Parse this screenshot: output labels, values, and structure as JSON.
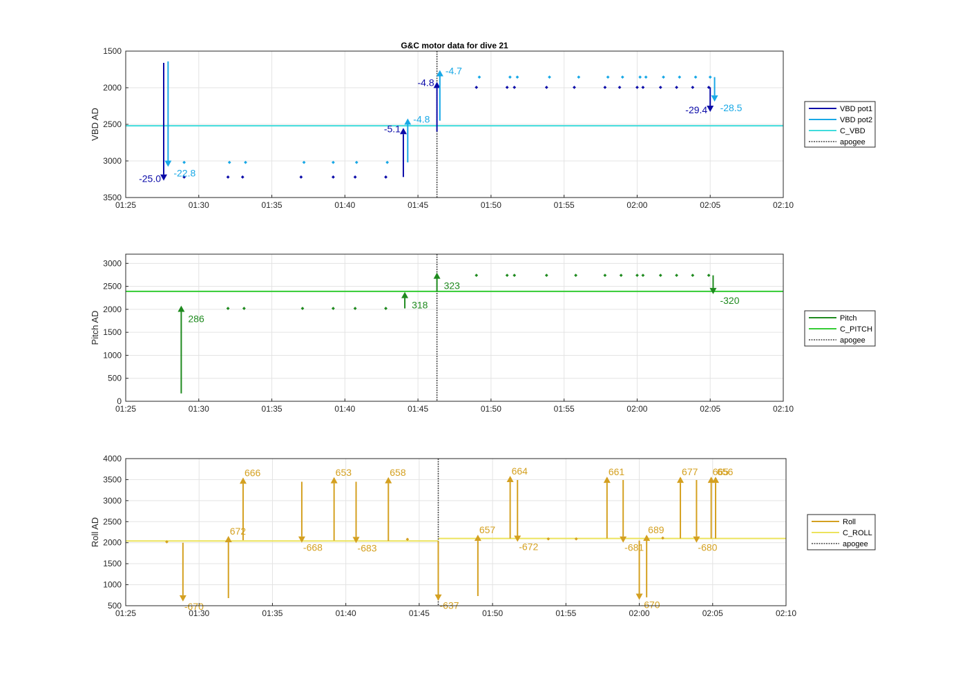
{
  "title": "G&C motor data for dive 21",
  "chart_data": [
    {
      "type": "scatter",
      "ylabel": "VBD AD",
      "y_reversed": true,
      "ylim": [
        1500,
        3500
      ],
      "yticks": [
        "1500",
        "2000",
        "2500",
        "3000",
        "3500"
      ],
      "xlim": [
        "01:25",
        "02:10"
      ],
      "xticks": [
        "01:25",
        "01:30",
        "01:35",
        "01:40",
        "01:45",
        "01:50",
        "01:55",
        "02:00",
        "02:05",
        "02:10"
      ],
      "grid": true,
      "legend_position": "right",
      "colors": {
        "pot1": "#0a0aa8",
        "pot2": "#18a8e6",
        "c_vbd": "#3fdcdc",
        "apogee": "#444444"
      },
      "series": [
        {
          "name": "VBD pot1",
          "color": "#0a0aa8"
        },
        {
          "name": "VBD pot2",
          "color": "#18a8e6"
        },
        {
          "name": "C_VBD",
          "color": "#3fdcdc",
          "hline": 2520
        },
        {
          "name": "apogee",
          "color": "#444444",
          "vline": "01:46.3"
        }
      ],
      "pot1_points": [
        [
          "01:29.0",
          3220
        ],
        [
          "01:32.0",
          3220
        ],
        [
          "01:33.0",
          3220
        ],
        [
          "01:37.0",
          3220
        ],
        [
          "01:39.2",
          3220
        ],
        [
          "01:40.7",
          3220
        ],
        [
          "01:42.8",
          3220
        ],
        [
          "01:49.0",
          1995
        ],
        [
          "01:51.1",
          1995
        ],
        [
          "01:51.6",
          1995
        ],
        [
          "01:53.8",
          1995
        ],
        [
          "01:55.7",
          1995
        ],
        [
          "01:57.8",
          1995
        ],
        [
          "01:58.8",
          1995
        ],
        [
          "02:00.0",
          1995
        ],
        [
          "02:00.4",
          1995
        ],
        [
          "02:01.6",
          1995
        ],
        [
          "02:02.7",
          1995
        ],
        [
          "02:03.8",
          1995
        ],
        [
          "02:04.9",
          1995
        ]
      ],
      "pot2_points": [
        [
          "01:29.0",
          3020
        ],
        [
          "01:32.1",
          3020
        ],
        [
          "01:33.2",
          3020
        ],
        [
          "01:37.2",
          3020
        ],
        [
          "01:39.2",
          3020
        ],
        [
          "01:40.8",
          3020
        ],
        [
          "01:42.9",
          3020
        ],
        [
          "01:49.2",
          1855
        ],
        [
          "01:51.3",
          1855
        ],
        [
          "01:51.8",
          1855
        ],
        [
          "01:54.0",
          1855
        ],
        [
          "01:56.0",
          1855
        ],
        [
          "01:58.0",
          1855
        ],
        [
          "01:59.0",
          1855
        ],
        [
          "02:00.2",
          1855
        ],
        [
          "02:00.6",
          1855
        ],
        [
          "02:01.8",
          1855
        ],
        [
          "02:02.9",
          1855
        ],
        [
          "02:04.0",
          1855
        ],
        [
          "02:05.0",
          1855
        ]
      ],
      "moves": [
        {
          "series": "pot1",
          "x": "01:27.6",
          "from": 1660,
          "to": 3270,
          "label": "-25.0",
          "label_side": "left"
        },
        {
          "series": "pot2",
          "x": "01:27.9",
          "from": 1640,
          "to": 3080,
          "label": "-22.8",
          "label_side": "right"
        },
        {
          "series": "pot1",
          "x": "01:44.0",
          "from": 3220,
          "to": 2550,
          "label": "-5.1",
          "label_side": "left"
        },
        {
          "series": "pot2",
          "x": "01:44.3",
          "from": 3020,
          "to": 2420,
          "label": "-4.8",
          "label_side": "right"
        },
        {
          "series": "pot1",
          "x": "01:46.3",
          "from": 2600,
          "to": 1920,
          "label": "-4.8",
          "label_side": "left"
        },
        {
          "series": "pot2",
          "x": "01:46.5",
          "from": 2450,
          "to": 1760,
          "label": "-4.7",
          "label_side": "right"
        },
        {
          "series": "pot1",
          "x": "02:05.0",
          "from": 1995,
          "to": 2330,
          "label": "-29.4",
          "label_side": "left"
        },
        {
          "series": "pot2",
          "x": "02:05.3",
          "from": 1855,
          "to": 2190,
          "label": "-28.5",
          "label_side": "right"
        }
      ]
    },
    {
      "type": "scatter",
      "ylabel": "Pitch AD",
      "ylim": [
        0,
        3200
      ],
      "yticks": [
        "0",
        "500",
        "1000",
        "1500",
        "2000",
        "2500",
        "3000"
      ],
      "xlim": [
        "01:25",
        "02:10"
      ],
      "xticks": [
        "01:25",
        "01:30",
        "01:35",
        "01:40",
        "01:45",
        "01:50",
        "01:55",
        "02:00",
        "02:05",
        "02:10"
      ],
      "grid": true,
      "legend_position": "right",
      "colors": {
        "pitch": "#1e8a1e",
        "c_pitch": "#33cc33",
        "apogee": "#444444"
      },
      "series": [
        {
          "name": "Pitch",
          "color": "#1e8a1e"
        },
        {
          "name": "C_PITCH",
          "color": "#33cc33",
          "hline": 2390
        },
        {
          "name": "apogee",
          "color": "#444444",
          "vline": "01:46.3"
        }
      ],
      "points": [
        [
          "01:32.0",
          2020
        ],
        [
          "01:33.1",
          2020
        ],
        [
          "01:37.1",
          2020
        ],
        [
          "01:39.2",
          2020
        ],
        [
          "01:40.7",
          2020
        ],
        [
          "01:42.8",
          2020
        ],
        [
          "01:49.0",
          2740
        ],
        [
          "01:51.1",
          2740
        ],
        [
          "01:51.6",
          2740
        ],
        [
          "01:53.8",
          2740
        ],
        [
          "01:55.8",
          2740
        ],
        [
          "01:57.8",
          2740
        ],
        [
          "01:58.9",
          2740
        ],
        [
          "02:00.0",
          2740
        ],
        [
          "02:00.4",
          2740
        ],
        [
          "02:01.6",
          2740
        ],
        [
          "02:02.7",
          2740
        ],
        [
          "02:03.8",
          2740
        ],
        [
          "02:04.9",
          2740
        ]
      ],
      "moves": [
        {
          "x": "01:28.8",
          "from": 170,
          "to": 2080,
          "label": "286"
        },
        {
          "x": "01:44.1",
          "from": 2020,
          "to": 2380,
          "label": "318"
        },
        {
          "x": "01:46.3",
          "from": 2380,
          "to": 2800,
          "label": "323"
        },
        {
          "x": "02:05.2",
          "from": 2740,
          "to": 2330,
          "label": "-320"
        }
      ]
    },
    {
      "type": "scatter",
      "ylabel": "Roll AD",
      "ylim": [
        500,
        4000
      ],
      "yticks": [
        "500",
        "1000",
        "1500",
        "2000",
        "2500",
        "3000",
        "3500",
        "4000"
      ],
      "xlim": [
        "01:25",
        "02:10"
      ],
      "xticks": [
        "01:25",
        "01:30",
        "01:35",
        "01:40",
        "01:45",
        "01:50",
        "01:55",
        "02:00",
        "02:05",
        "02:10"
      ],
      "grid": true,
      "legend_position": "right",
      "colors": {
        "roll": "#d4a020",
        "c_roll": "#ece35c",
        "apogee": "#444444"
      },
      "series": [
        {
          "name": "Roll",
          "color": "#d4a020"
        },
        {
          "name": "C_ROLL",
          "color": "#ece35c",
          "hline_segments": [
            [
              "01:25",
              "01:46.3",
              2040
            ],
            [
              "01:46.3",
              "02:10",
              2100
            ]
          ]
        },
        {
          "name": "apogee",
          "color": "#444444",
          "vline": "01:46.3"
        }
      ],
      "points": [
        [
          "01:27.8",
          2020
        ],
        [
          "01:44.2",
          2080
        ],
        [
          "01:53.8",
          2090
        ],
        [
          "01:55.7",
          2090
        ],
        [
          "02:01.6",
          2110
        ]
      ],
      "moves": [
        {
          "x": "01:28.9",
          "from": 2000,
          "to": 600,
          "label": "-670",
          "label_pos": "below"
        },
        {
          "x": "01:32.0",
          "from": 680,
          "to": 2160,
          "label": "672",
          "label_pos": "above"
        },
        {
          "x": "01:33.0",
          "from": 2060,
          "to": 3550,
          "label": "666",
          "label_pos": "above"
        },
        {
          "x": "01:37.0",
          "from": 3450,
          "to": 2000,
          "label": "-668",
          "label_pos": "below"
        },
        {
          "x": "01:39.2",
          "from": 2050,
          "to": 3560,
          "label": "653",
          "label_pos": "above"
        },
        {
          "x": "01:40.7",
          "from": 3450,
          "to": 1990,
          "label": "-683",
          "label_pos": "below"
        },
        {
          "x": "01:42.9",
          "from": 2040,
          "to": 3560,
          "label": "658",
          "label_pos": "above"
        },
        {
          "x": "01:46.3",
          "from": 2040,
          "to": 620,
          "label": "-637",
          "label_pos": "below"
        },
        {
          "x": "01:49.0",
          "from": 730,
          "to": 2190,
          "label": "657",
          "label_pos": "above"
        },
        {
          "x": "01:51.2",
          "from": 2100,
          "to": 3590,
          "label": "664",
          "label_pos": "above"
        },
        {
          "x": "01:51.7",
          "from": 3490,
          "to": 2020,
          "label": "-672",
          "label_pos": "below"
        },
        {
          "x": "01:57.8",
          "from": 2100,
          "to": 3570,
          "label": "661",
          "label_pos": "above"
        },
        {
          "x": "01:58.9",
          "from": 3490,
          "to": 2000,
          "label": "-681",
          "label_pos": "below"
        },
        {
          "x": "02:00.0",
          "from": 2050,
          "to": 640,
          "label": "-670",
          "label_pos": "below"
        },
        {
          "x": "02:00.5",
          "from": 700,
          "to": 2190,
          "label": "689",
          "label_pos": "above"
        },
        {
          "x": "02:02.8",
          "from": 2100,
          "to": 3570,
          "label": "677",
          "label_pos": "above"
        },
        {
          "x": "02:03.9",
          "from": 3490,
          "to": 2000,
          "label": "-680",
          "label_pos": "below"
        },
        {
          "x": "02:04.9",
          "from": 2100,
          "to": 3570,
          "label": "665",
          "label_pos": "above"
        },
        {
          "x": "02:05.2",
          "from": 2100,
          "to": 3570,
          "label": "656",
          "label_pos": "above"
        }
      ]
    }
  ]
}
